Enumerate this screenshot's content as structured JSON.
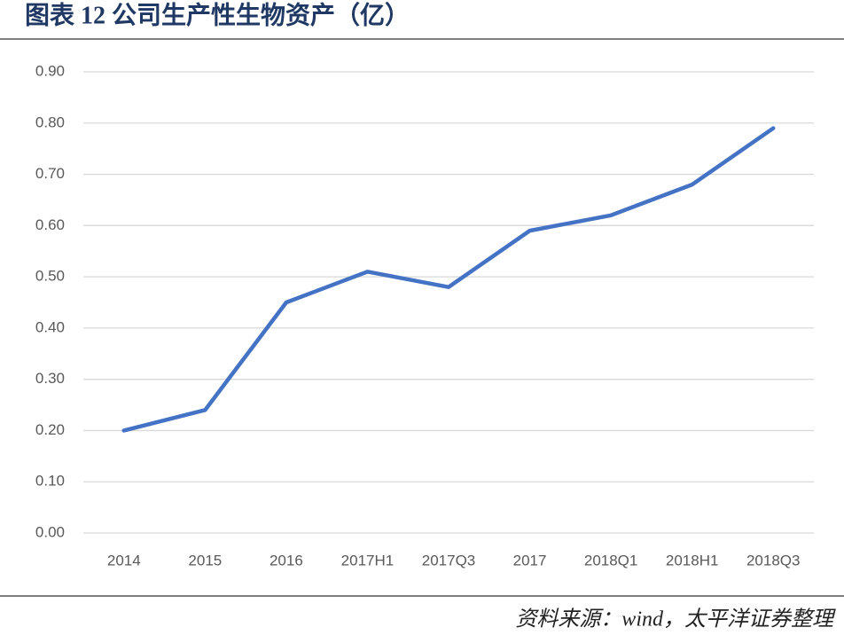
{
  "chart_data": {
    "type": "line",
    "title": "图表 12 公司生产性生物资产（亿）",
    "source": "资料来源：wind，太平洋证券整理",
    "categories": [
      "2014",
      "2015",
      "2016",
      "2017H1",
      "2017Q3",
      "2017",
      "2018Q1",
      "2018H1",
      "2018Q3"
    ],
    "values": [
      0.2,
      0.24,
      0.45,
      0.51,
      0.48,
      0.59,
      0.62,
      0.68,
      0.79
    ],
    "color": "#4472c4",
    "ylim": [
      0,
      0.9
    ],
    "yticks": [
      {
        "value": 0,
        "label": "0.00"
      },
      {
        "value": 0.1,
        "label": "0.10"
      },
      {
        "value": 0.2,
        "label": "0.20"
      },
      {
        "value": 0.3,
        "label": "0.30"
      },
      {
        "value": 0.4,
        "label": "0.40"
      },
      {
        "value": 0.5,
        "label": "0.50"
      },
      {
        "value": 0.6,
        "label": "0.60"
      },
      {
        "value": 0.7,
        "label": "0.70"
      },
      {
        "value": 0.8,
        "label": "0.80"
      },
      {
        "value": 0.9,
        "label": "0.90"
      }
    ],
    "grid": true
  }
}
